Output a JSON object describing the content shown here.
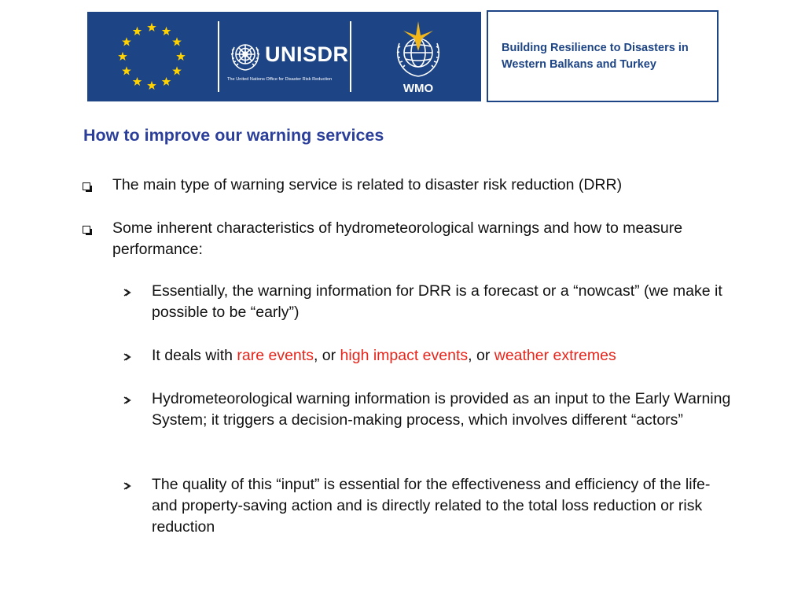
{
  "header": {
    "eu_flag_icon": "eu-flag-icon",
    "unisdr_name": "UNISDR",
    "unisdr_subtitle": "The United Nations Office for Disaster Risk Reduction",
    "wmo_name": "WMO",
    "project_title": "Building Resilience to Disasters in Western Balkans and Turkey",
    "brand_color": "#1d4485"
  },
  "content": {
    "heading": "How to improve our warning services",
    "heading_color": "#2b3f9a",
    "highlight_color": "#e8251b",
    "bullets": [
      {
        "text": "The main type of warning service is related to disaster risk reduction (DRR)"
      },
      {
        "text": "Some inherent characteristics of hydrometeorological warnings and how to measure performance:"
      }
    ],
    "sub_bullets": [
      {
        "text": "Essentially, the warning information for DRR is a forecast or a “nowcast” (we make it possible to be “early”)"
      },
      {
        "prefix": "It deals with ",
        "highlight_1": "rare events",
        "sep_1": ", or ",
        "highlight_2": "high impact events",
        "sep_2": ", or ",
        "highlight_3": "weather extremes"
      },
      {
        "text": "Hydrometeorological warning information is provided as an input to the Early Warning System; it triggers a decision-making process, which involves different “actors”"
      },
      {
        "text": "The quality of this “input” is essential for the effectiveness and efficiency of the life- and property-saving action and is directly related to the total loss reduction or risk reduction"
      }
    ]
  }
}
